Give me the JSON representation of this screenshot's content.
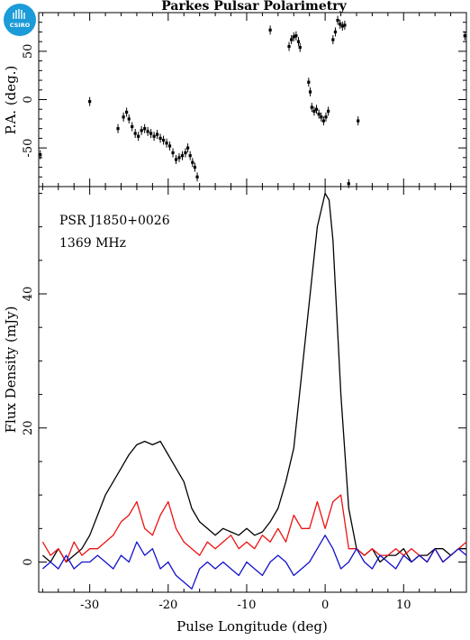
{
  "title": "Parkes Pulsar Polarimetry",
  "logo": {
    "text": "CSIRO",
    "color": "#1b9bd7"
  },
  "pa_panel": {
    "ylabel": "P.A. (deg.)",
    "yticks": [
      -50,
      0,
      50
    ]
  },
  "flux_panel": {
    "ylabel": "Flux Density (mJy)",
    "xlabel": "Pulse Longitude (deg)",
    "yticks": [
      0,
      20,
      40
    ],
    "xticks": [
      -30,
      -20,
      -10,
      0,
      10
    ],
    "annotations": [
      "PSR J1850+0026",
      "1369 MHz"
    ]
  },
  "colors": {
    "total": "#000000",
    "linear": "#ee1111",
    "circular": "#1111cc"
  },
  "chart_data": [
    {
      "type": "scatter",
      "title": "Parkes Pulsar Polarimetry",
      "ylabel": "P.A. (deg.)",
      "xlim": [
        -36.5,
        18
      ],
      "ylim": [
        -90,
        90
      ],
      "error_bars": true,
      "points": [
        [
          -36.3,
          -57
        ],
        [
          -30,
          -2
        ],
        [
          -26.4,
          -30
        ],
        [
          -25.7,
          -18
        ],
        [
          -25.3,
          -13
        ],
        [
          -25.0,
          -20
        ],
        [
          -24.6,
          -28
        ],
        [
          -24.2,
          -35
        ],
        [
          -23.8,
          -38
        ],
        [
          -23.4,
          -32
        ],
        [
          -23.0,
          -30
        ],
        [
          -22.6,
          -33
        ],
        [
          -22.2,
          -35
        ],
        [
          -21.8,
          -38
        ],
        [
          -21.4,
          -36
        ],
        [
          -21.0,
          -40
        ],
        [
          -20.6,
          -42
        ],
        [
          -20.2,
          -45
        ],
        [
          -19.8,
          -48
        ],
        [
          -19.4,
          -55
        ],
        [
          -19.0,
          -62
        ],
        [
          -18.6,
          -60
        ],
        [
          -18.2,
          -58
        ],
        [
          -17.8,
          -55
        ],
        [
          -17.5,
          -50
        ],
        [
          -17.2,
          -58
        ],
        [
          -16.9,
          -65
        ],
        [
          -16.6,
          -70
        ],
        [
          -16.3,
          -80
        ],
        [
          -7.0,
          72
        ],
        [
          -4.6,
          55
        ],
        [
          -4.3,
          62
        ],
        [
          -4.0,
          65
        ],
        [
          -3.7,
          66
        ],
        [
          -3.4,
          60
        ],
        [
          -3.2,
          54
        ],
        [
          -2.1,
          18
        ],
        [
          -1.9,
          8
        ],
        [
          -1.7,
          -8
        ],
        [
          -1.4,
          -12
        ],
        [
          -1.1,
          -10
        ],
        [
          -0.8,
          -15
        ],
        [
          -0.5,
          -18
        ],
        [
          -0.2,
          -22
        ],
        [
          0.1,
          -18
        ],
        [
          0.4,
          -12
        ],
        [
          1.0,
          62
        ],
        [
          1.3,
          70
        ],
        [
          1.6,
          82
        ],
        [
          1.9,
          78
        ],
        [
          2.2,
          76
        ],
        [
          2.5,
          77
        ],
        [
          3.0,
          -87
        ],
        [
          4.2,
          -22
        ],
        [
          17.8,
          66
        ]
      ]
    },
    {
      "type": "line",
      "ylabel": "Flux Density (mJy)",
      "xlabel": "Pulse Longitude (deg)",
      "xlim": [
        -36.5,
        18
      ],
      "ylim": [
        -4.5,
        56
      ],
      "series": [
        {
          "color": "#000000",
          "x": [
            -36,
            -35,
            -34,
            -33,
            -32,
            -31,
            -30,
            -29,
            -28,
            -27,
            -26,
            -25,
            -24,
            -23,
            -22,
            -21,
            -20,
            -19,
            -18,
            -17,
            -16,
            -15,
            -14,
            -13,
            -12,
            -11,
            -10,
            -9,
            -8,
            -7,
            -6,
            -5,
            -4,
            -3,
            -2,
            -1,
            0,
            0.5,
            1,
            2,
            3,
            4,
            5,
            6,
            7,
            8,
            9,
            10,
            11,
            12,
            13,
            14,
            15,
            16,
            17,
            18
          ],
          "y": [
            1,
            0,
            2,
            0,
            1,
            2,
            4,
            7,
            10,
            12,
            14,
            16,
            17.5,
            18,
            17.5,
            18,
            16,
            14,
            12,
            8,
            6,
            5,
            4,
            5,
            4.5,
            4,
            5,
            4,
            4.5,
            6,
            8,
            12,
            17,
            28,
            39,
            50,
            55,
            54,
            48,
            25,
            8,
            2,
            1,
            2,
            0,
            1,
            1,
            2,
            0,
            1,
            1,
            2,
            2,
            1,
            2,
            2
          ]
        },
        {
          "color": "#ee1111",
          "x": [
            -36,
            -35,
            -34,
            -33,
            -32,
            -31,
            -30,
            -29,
            -28,
            -27,
            -26,
            -25,
            -24,
            -23,
            -22,
            -21,
            -20,
            -19,
            -18,
            -17,
            -16,
            -15,
            -14,
            -13,
            -12,
            -11,
            -10,
            -9,
            -8,
            -7,
            -6,
            -5,
            -4,
            -3,
            -2,
            -1,
            0,
            1,
            2,
            3,
            4,
            5,
            6,
            7,
            8,
            9,
            10,
            11,
            12,
            13,
            14,
            15,
            16,
            17,
            18
          ],
          "y": [
            3,
            1,
            2,
            0,
            3,
            1,
            2,
            2,
            3,
            4,
            6,
            7,
            9,
            5,
            4,
            7,
            9,
            5,
            3,
            2,
            1,
            3,
            2,
            3,
            4,
            2,
            3,
            2,
            4,
            3,
            5,
            3,
            7,
            5,
            5,
            9,
            5,
            9,
            10,
            2,
            2,
            1,
            2,
            1,
            1,
            2,
            1,
            2,
            1,
            0,
            2,
            0,
            1,
            2,
            3
          ]
        },
        {
          "color": "#1111cc",
          "x": [
            -36,
            -35,
            -34,
            -33,
            -32,
            -31,
            -30,
            -29,
            -28,
            -27,
            -26,
            -25,
            -24,
            -23,
            -22,
            -21,
            -20,
            -19,
            -18,
            -17,
            -16,
            -15,
            -14,
            -13,
            -12,
            -11,
            -10,
            -9,
            -8,
            -7,
            -6,
            -5,
            -4,
            -3,
            -2,
            -1,
            0,
            1,
            2,
            3,
            4,
            5,
            6,
            7,
            8,
            9,
            10,
            11,
            12,
            13,
            14,
            15,
            16,
            17,
            18
          ],
          "y": [
            -1,
            0,
            -1,
            1,
            -1,
            0,
            0,
            1,
            0,
            -1,
            1,
            0,
            3,
            1,
            2,
            -1,
            0,
            -2,
            -3,
            -4,
            -1,
            0,
            -1,
            0,
            -1,
            -2,
            0,
            -1,
            -2,
            0,
            1,
            0,
            -2,
            -1,
            0,
            2,
            4,
            2,
            -1,
            0,
            2,
            0,
            -1,
            1,
            0,
            -1,
            1,
            0,
            1,
            0,
            2,
            0,
            1,
            2,
            1
          ]
        }
      ]
    }
  ]
}
